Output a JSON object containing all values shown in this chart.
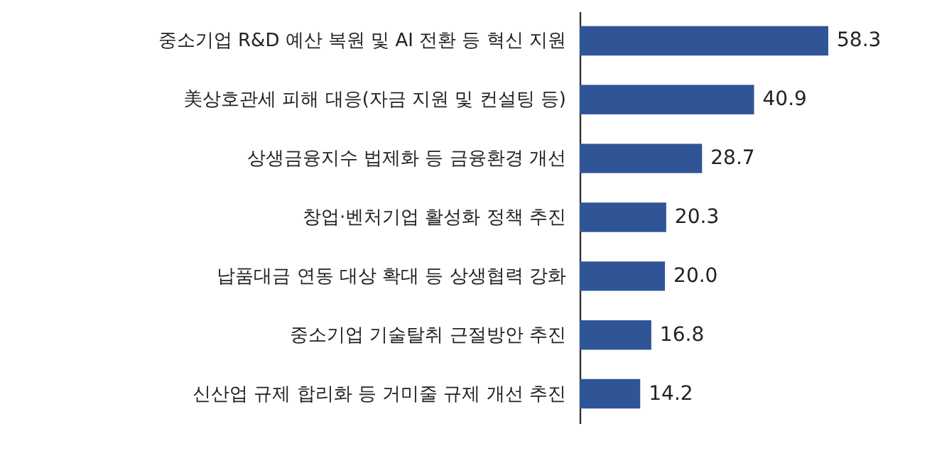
{
  "chart_data": {
    "type": "bar",
    "orientation": "horizontal",
    "categories": [
      "중소기업 R&D 예산 복원 및 AI 전환 등 혁신 지원",
      "美상호관세 피해 대응(자금 지원 및 컨설팅 등)",
      "상생금융지수 법제화 등 금융환경 개선",
      "창업·벤처기업 활성화 정책 추진",
      "납품대금 연동 대상 확대 등 상생협력 강화",
      "중소기업 기술탈취 근절방안 추진",
      "신산업 규제 합리화 등 거미줄 규제 개선 추진"
    ],
    "values": [
      58.3,
      40.9,
      28.7,
      20.3,
      20.0,
      16.8,
      14.2
    ],
    "value_labels": [
      "58.3",
      "40.9",
      "28.7",
      "20.3",
      "20.0",
      "16.8",
      "14.2"
    ],
    "color": "#2f5597"
  }
}
